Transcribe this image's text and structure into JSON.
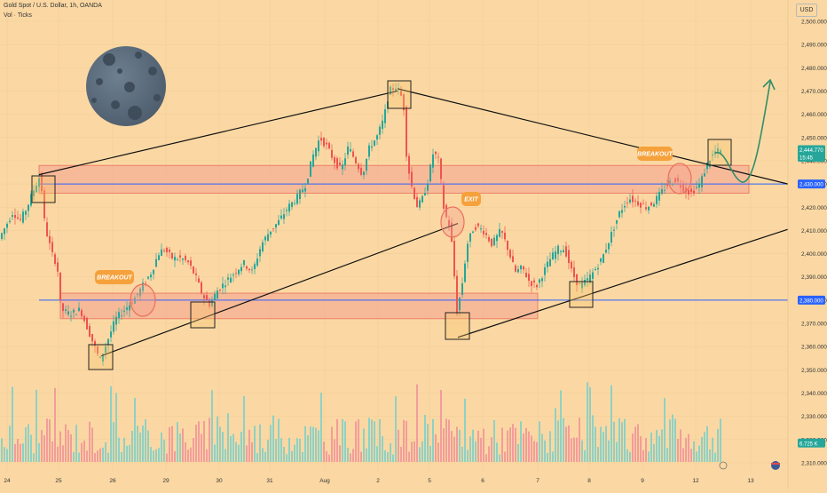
{
  "header": {
    "symbol": "Gold Spot / U.S. Dollar, 1h, OANDA",
    "indicator": "Vol · Ticks"
  },
  "currency": "USD",
  "chart_data": {
    "type": "candlestick",
    "ylim": [
      2305,
      2505
    ],
    "y_ticks": [
      2310,
      2320,
      2330,
      2340,
      2350,
      2360,
      2370,
      2380,
      2390,
      2400,
      2410,
      2420,
      2430,
      2440,
      2450,
      2460,
      2470,
      2480,
      2490,
      2500
    ],
    "x_ticks": [
      "24",
      "25",
      "26",
      "29",
      "30",
      "31",
      "Aug",
      "2",
      "5",
      "6",
      "7",
      "8",
      "9",
      "12",
      "13"
    ],
    "price_tags": [
      {
        "label": "2,444.770",
        "value": 2444.77,
        "color": "#26a69a"
      },
      {
        "label": "15:45",
        "value": 2441.5,
        "color": "#26a69a"
      },
      {
        "label": "2,430.000",
        "value": 2430,
        "color": "#2962ff"
      },
      {
        "label": "2,380.000",
        "value": 2380,
        "color": "#2962ff"
      },
      {
        "label": "6.725 K",
        "value": 2318.5,
        "color": "#26a69a"
      }
    ],
    "levels": [
      2430,
      2380
    ],
    "zones": [
      [
        2426,
        2438
      ],
      [
        2372,
        2383
      ]
    ],
    "annotations": [
      "BREAKOUT",
      "EXIT",
      "BREAKOUT"
    ],
    "path_points": [
      {
        "x": 0,
        "p": 2406
      },
      {
        "x": 8,
        "p": 2412
      },
      {
        "x": 16,
        "p": 2418
      },
      {
        "x": 24,
        "p": 2414
      },
      {
        "x": 32,
        "p": 2420
      },
      {
        "x": 40,
        "p": 2428
      },
      {
        "x": 47,
        "p": 2434
      },
      {
        "x": 52,
        "p": 2412
      },
      {
        "x": 60,
        "p": 2400
      },
      {
        "x": 66,
        "p": 2395
      },
      {
        "x": 70,
        "p": 2376
      },
      {
        "x": 80,
        "p": 2374
      },
      {
        "x": 92,
        "p": 2376
      },
      {
        "x": 100,
        "p": 2368
      },
      {
        "x": 108,
        "p": 2360
      },
      {
        "x": 114,
        "p": 2354
      },
      {
        "x": 122,
        "p": 2362
      },
      {
        "x": 132,
        "p": 2372
      },
      {
        "x": 142,
        "p": 2376
      },
      {
        "x": 152,
        "p": 2380
      },
      {
        "x": 162,
        "p": 2386
      },
      {
        "x": 172,
        "p": 2392
      },
      {
        "x": 180,
        "p": 2400
      },
      {
        "x": 186,
        "p": 2402
      },
      {
        "x": 196,
        "p": 2398
      },
      {
        "x": 206,
        "p": 2398
      },
      {
        "x": 214,
        "p": 2396
      },
      {
        "x": 222,
        "p": 2390
      },
      {
        "x": 230,
        "p": 2382
      },
      {
        "x": 238,
        "p": 2378
      },
      {
        "x": 246,
        "p": 2384
      },
      {
        "x": 256,
        "p": 2388
      },
      {
        "x": 266,
        "p": 2392
      },
      {
        "x": 276,
        "p": 2396
      },
      {
        "x": 286,
        "p": 2392
      },
      {
        "x": 296,
        "p": 2404
      },
      {
        "x": 306,
        "p": 2410
      },
      {
        "x": 316,
        "p": 2414
      },
      {
        "x": 326,
        "p": 2420
      },
      {
        "x": 336,
        "p": 2424
      },
      {
        "x": 346,
        "p": 2430
      },
      {
        "x": 354,
        "p": 2442
      },
      {
        "x": 362,
        "p": 2450
      },
      {
        "x": 370,
        "p": 2446
      },
      {
        "x": 378,
        "p": 2440
      },
      {
        "x": 386,
        "p": 2436
      },
      {
        "x": 394,
        "p": 2446
      },
      {
        "x": 402,
        "p": 2440
      },
      {
        "x": 410,
        "p": 2434
      },
      {
        "x": 418,
        "p": 2446
      },
      {
        "x": 426,
        "p": 2450
      },
      {
        "x": 434,
        "p": 2458
      },
      {
        "x": 440,
        "p": 2470
      },
      {
        "x": 448,
        "p": 2472
      },
      {
        "x": 456,
        "p": 2466
      },
      {
        "x": 460,
        "p": 2440
      },
      {
        "x": 466,
        "p": 2428
      },
      {
        "x": 472,
        "p": 2420
      },
      {
        "x": 478,
        "p": 2424
      },
      {
        "x": 484,
        "p": 2432
      },
      {
        "x": 490,
        "p": 2444
      },
      {
        "x": 496,
        "p": 2440
      },
      {
        "x": 502,
        "p": 2418
      },
      {
        "x": 508,
        "p": 2412
      },
      {
        "x": 512,
        "p": 2400
      },
      {
        "x": 516,
        "p": 2374
      },
      {
        "x": 522,
        "p": 2386
      },
      {
        "x": 528,
        "p": 2404
      },
      {
        "x": 536,
        "p": 2412
      },
      {
        "x": 546,
        "p": 2410
      },
      {
        "x": 556,
        "p": 2404
      },
      {
        "x": 566,
        "p": 2410
      },
      {
        "x": 574,
        "p": 2402
      },
      {
        "x": 582,
        "p": 2392
      },
      {
        "x": 590,
        "p": 2394
      },
      {
        "x": 598,
        "p": 2388
      },
      {
        "x": 606,
        "p": 2386
      },
      {
        "x": 614,
        "p": 2392
      },
      {
        "x": 622,
        "p": 2398
      },
      {
        "x": 630,
        "p": 2402
      },
      {
        "x": 638,
        "p": 2402
      },
      {
        "x": 646,
        "p": 2392
      },
      {
        "x": 654,
        "p": 2386
      },
      {
        "x": 662,
        "p": 2388
      },
      {
        "x": 670,
        "p": 2392
      },
      {
        "x": 680,
        "p": 2398
      },
      {
        "x": 690,
        "p": 2408
      },
      {
        "x": 700,
        "p": 2418
      },
      {
        "x": 710,
        "p": 2424
      },
      {
        "x": 720,
        "p": 2422
      },
      {
        "x": 730,
        "p": 2420
      },
      {
        "x": 738,
        "p": 2422
      },
      {
        "x": 746,
        "p": 2426
      },
      {
        "x": 754,
        "p": 2430
      },
      {
        "x": 762,
        "p": 2432
      },
      {
        "x": 772,
        "p": 2428
      },
      {
        "x": 780,
        "p": 2426
      },
      {
        "x": 790,
        "p": 2430
      },
      {
        "x": 800,
        "p": 2440
      },
      {
        "x": 808,
        "p": 2444
      },
      {
        "x": 814,
        "p": 2444
      }
    ]
  }
}
